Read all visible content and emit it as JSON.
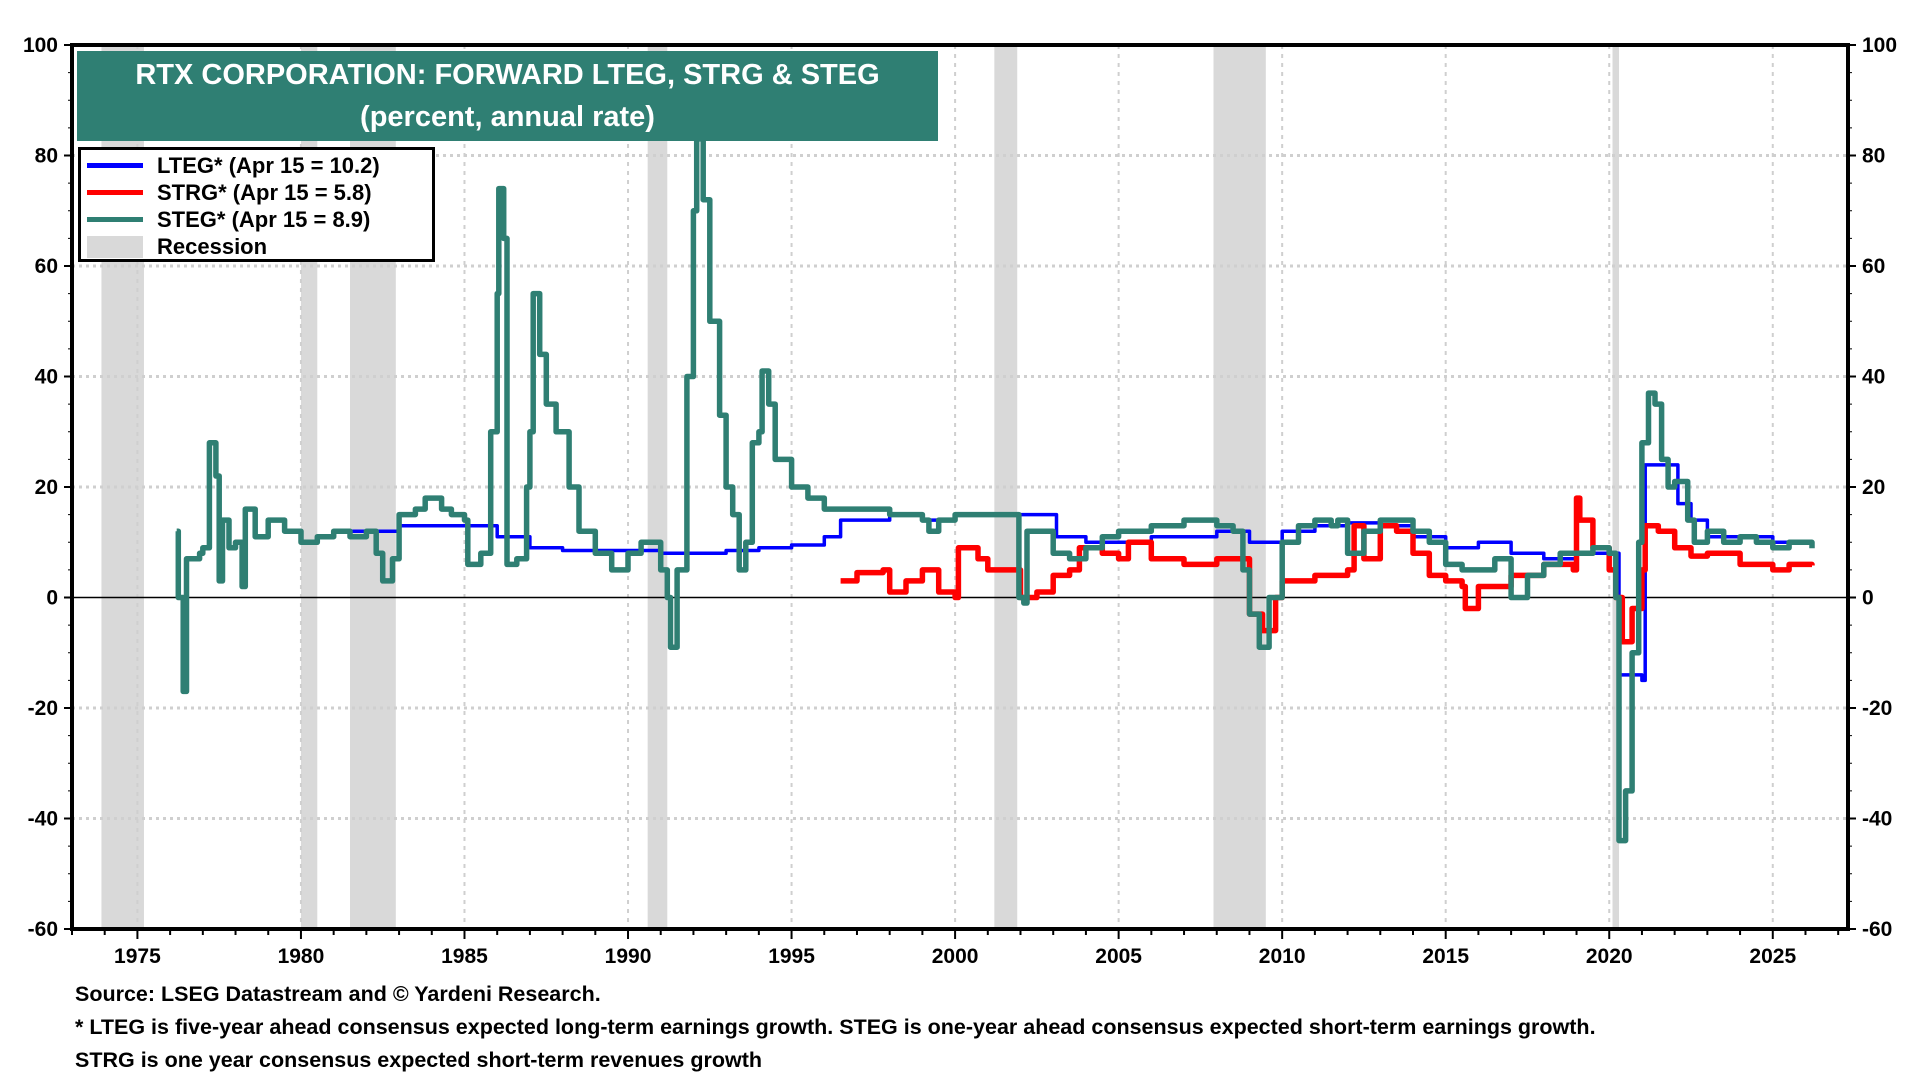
{
  "chart_data": {
    "type": "line",
    "title": "RTX CORPORATION: FORWARD LTEG, STRG & STEG",
    "subtitle": "(percent, annual rate)",
    "xlim": [
      1973,
      2027.3
    ],
    "ylim": [
      -60,
      100
    ],
    "x_ticks": [
      1975,
      1980,
      1985,
      1990,
      1995,
      2000,
      2005,
      2010,
      2015,
      2020,
      2025
    ],
    "y_ticks": [
      -60,
      -40,
      -20,
      0,
      20,
      40,
      60,
      80,
      100
    ],
    "grid": true,
    "legend_placement": "top-left",
    "recessions": [
      [
        1973.9,
        1975.2
      ],
      [
        1980.0,
        1980.5
      ],
      [
        1981.5,
        1982.9
      ],
      [
        1990.6,
        1991.2
      ],
      [
        2001.2,
        2001.9
      ],
      [
        2007.9,
        2009.5
      ],
      [
        2020.1,
        2020.3
      ]
    ],
    "recession_label": "Recession",
    "recession_color": "#d9d9d9",
    "series": [
      {
        "name": "LTEG* (Apr 15 = 10.2)",
        "color": "#0000ff",
        "points": [
          [
            1981.5,
            12
          ],
          [
            1983,
            13
          ],
          [
            1985,
            13
          ],
          [
            1986,
            11
          ],
          [
            1987,
            9
          ],
          [
            1988,
            8.5
          ],
          [
            1990,
            8.5
          ],
          [
            1991,
            8
          ],
          [
            1993,
            8.5
          ],
          [
            1994,
            9
          ],
          [
            1995,
            9.5
          ],
          [
            1996,
            11
          ],
          [
            1996.5,
            14
          ],
          [
            1998,
            15
          ],
          [
            1999,
            14
          ],
          [
            2000,
            15
          ],
          [
            2003,
            15
          ],
          [
            2003.1,
            11
          ],
          [
            2004,
            10
          ],
          [
            2006,
            11
          ],
          [
            2008,
            12
          ],
          [
            2009,
            10
          ],
          [
            2010,
            12
          ],
          [
            2011,
            13
          ],
          [
            2012,
            13.5
          ],
          [
            2013,
            13
          ],
          [
            2014,
            11
          ],
          [
            2015,
            9
          ],
          [
            2016,
            10
          ],
          [
            2017,
            8
          ],
          [
            2018,
            7
          ],
          [
            2019,
            8
          ],
          [
            2020.2,
            8
          ],
          [
            2020.3,
            -14
          ],
          [
            2020.8,
            -14
          ],
          [
            2021.0,
            -15
          ],
          [
            2021.1,
            24
          ],
          [
            2021.8,
            24
          ],
          [
            2022.1,
            17
          ],
          [
            2022.5,
            14
          ],
          [
            2023,
            11
          ],
          [
            2024,
            11
          ],
          [
            2025,
            10
          ],
          [
            2026.2,
            10.2
          ]
        ]
      },
      {
        "name": "STRG* (Apr 15 = 5.8)",
        "color": "#ff0000",
        "points": [
          [
            1996.5,
            3
          ],
          [
            1997,
            4.5
          ],
          [
            1997.8,
            5
          ],
          [
            1998,
            1
          ],
          [
            1998.5,
            3
          ],
          [
            1999,
            5
          ],
          [
            1999.5,
            1
          ],
          [
            2000,
            0
          ],
          [
            2000.1,
            9
          ],
          [
            2000.7,
            7
          ],
          [
            2001,
            5
          ],
          [
            2001.8,
            5
          ],
          [
            2002,
            0
          ],
          [
            2002.5,
            1
          ],
          [
            2003,
            4
          ],
          [
            2003.5,
            5
          ],
          [
            2003.8,
            9
          ],
          [
            2004.5,
            8
          ],
          [
            2005,
            7
          ],
          [
            2005.3,
            10
          ],
          [
            2006,
            7
          ],
          [
            2007,
            6
          ],
          [
            2008,
            7
          ],
          [
            2008.8,
            7
          ],
          [
            2009,
            -3
          ],
          [
            2009.4,
            -6
          ],
          [
            2009.8,
            0
          ],
          [
            2010,
            3
          ],
          [
            2011,
            4
          ],
          [
            2012,
            5
          ],
          [
            2012.2,
            13
          ],
          [
            2012.5,
            7
          ],
          [
            2013,
            13
          ],
          [
            2013.5,
            12
          ],
          [
            2014,
            8
          ],
          [
            2014.5,
            4
          ],
          [
            2015,
            3
          ],
          [
            2015.5,
            2
          ],
          [
            2015.6,
            -2
          ],
          [
            2016,
            2
          ],
          [
            2017,
            4
          ],
          [
            2018,
            6
          ],
          [
            2018.9,
            5
          ],
          [
            2019.0,
            18
          ],
          [
            2019.1,
            14
          ],
          [
            2019.5,
            9
          ],
          [
            2020,
            5
          ],
          [
            2020.2,
            0
          ],
          [
            2020.4,
            -8
          ],
          [
            2020.7,
            -2
          ],
          [
            2021.0,
            5
          ],
          [
            2021.1,
            13
          ],
          [
            2021.5,
            12
          ],
          [
            2022,
            9
          ],
          [
            2022.5,
            7.5
          ],
          [
            2023,
            8
          ],
          [
            2023.5,
            8
          ],
          [
            2024,
            6
          ],
          [
            2024.5,
            6
          ],
          [
            2025,
            5
          ],
          [
            2025.5,
            6
          ],
          [
            2026.2,
            5.8
          ]
        ]
      },
      {
        "name": "STEG* (Apr 15 = 8.9)",
        "color": "#2f7f73",
        "points": [
          [
            1976.2,
            12
          ],
          [
            1976.25,
            0
          ],
          [
            1976.4,
            -17
          ],
          [
            1976.5,
            7
          ],
          [
            1976.9,
            8
          ],
          [
            1977.0,
            9
          ],
          [
            1977.2,
            28
          ],
          [
            1977.4,
            22
          ],
          [
            1977.5,
            3
          ],
          [
            1977.6,
            14
          ],
          [
            1977.8,
            9
          ],
          [
            1978.0,
            10
          ],
          [
            1978.2,
            2
          ],
          [
            1978.3,
            16
          ],
          [
            1978.6,
            11
          ],
          [
            1979,
            14
          ],
          [
            1979.5,
            12
          ],
          [
            1980,
            10
          ],
          [
            1980.5,
            11
          ],
          [
            1981,
            12
          ],
          [
            1981.5,
            11
          ],
          [
            1982,
            12
          ],
          [
            1982.3,
            8
          ],
          [
            1982.5,
            3
          ],
          [
            1982.8,
            7
          ],
          [
            1983,
            15
          ],
          [
            1983.5,
            16
          ],
          [
            1983.8,
            18
          ],
          [
            1984.3,
            16
          ],
          [
            1984.6,
            15
          ],
          [
            1985,
            14
          ],
          [
            1985.1,
            6
          ],
          [
            1985.5,
            8
          ],
          [
            1985.8,
            30
          ],
          [
            1986,
            55
          ],
          [
            1986.05,
            74
          ],
          [
            1986.2,
            65
          ],
          [
            1986.3,
            6
          ],
          [
            1986.6,
            7
          ],
          [
            1986.9,
            20
          ],
          [
            1987.0,
            30
          ],
          [
            1987.1,
            55
          ],
          [
            1987.3,
            44
          ],
          [
            1987.5,
            35
          ],
          [
            1987.8,
            30
          ],
          [
            1988.2,
            20
          ],
          [
            1988.5,
            12
          ],
          [
            1989,
            8
          ],
          [
            1989.5,
            5
          ],
          [
            1990,
            8
          ],
          [
            1990.4,
            10
          ],
          [
            1990.7,
            10
          ],
          [
            1991,
            5
          ],
          [
            1991.2,
            0
          ],
          [
            1991.3,
            -9
          ],
          [
            1991.5,
            5
          ],
          [
            1991.8,
            40
          ],
          [
            1992.0,
            70
          ],
          [
            1992.1,
            83
          ],
          [
            1992.3,
            72
          ],
          [
            1992.5,
            50
          ],
          [
            1992.8,
            33
          ],
          [
            1993.0,
            20
          ],
          [
            1993.2,
            15
          ],
          [
            1993.4,
            5
          ],
          [
            1993.6,
            10
          ],
          [
            1993.8,
            28
          ],
          [
            1994.0,
            30
          ],
          [
            1994.1,
            41
          ],
          [
            1994.3,
            35
          ],
          [
            1994.5,
            25
          ],
          [
            1995,
            20
          ],
          [
            1995.5,
            18
          ],
          [
            1996,
            16
          ],
          [
            1997,
            16
          ],
          [
            1998,
            15
          ],
          [
            1999,
            14
          ],
          [
            1999.2,
            12
          ],
          [
            1999.5,
            14
          ],
          [
            2000,
            15
          ],
          [
            2001,
            15
          ],
          [
            2001.9,
            15
          ],
          [
            2001.95,
            0
          ],
          [
            2002.1,
            -1
          ],
          [
            2002.2,
            12
          ],
          [
            2002.8,
            12
          ],
          [
            2003,
            8
          ],
          [
            2003.5,
            7
          ],
          [
            2004,
            9
          ],
          [
            2004.5,
            11
          ],
          [
            2005,
            12
          ],
          [
            2006,
            13
          ],
          [
            2007,
            14
          ],
          [
            2008,
            13
          ],
          [
            2008.5,
            12
          ],
          [
            2008.8,
            5
          ],
          [
            2009.0,
            -3
          ],
          [
            2009.3,
            -9
          ],
          [
            2009.6,
            0
          ],
          [
            2010,
            10
          ],
          [
            2010.5,
            13
          ],
          [
            2011,
            14
          ],
          [
            2011.5,
            13
          ],
          [
            2011.7,
            14
          ],
          [
            2012,
            8
          ],
          [
            2012.5,
            12
          ],
          [
            2013,
            14
          ],
          [
            2013.5,
            14
          ],
          [
            2014,
            12
          ],
          [
            2014.5,
            10
          ],
          [
            2015,
            6
          ],
          [
            2015.5,
            5
          ],
          [
            2016,
            5
          ],
          [
            2016.5,
            7
          ],
          [
            2017,
            0
          ],
          [
            2017.5,
            4
          ],
          [
            2018,
            6
          ],
          [
            2018.5,
            8
          ],
          [
            2019,
            8
          ],
          [
            2019.5,
            9
          ],
          [
            2020,
            8
          ],
          [
            2020.2,
            0
          ],
          [
            2020.3,
            -44
          ],
          [
            2020.5,
            -35
          ],
          [
            2020.7,
            -10
          ],
          [
            2020.9,
            10
          ],
          [
            2021.0,
            28
          ],
          [
            2021.2,
            37
          ],
          [
            2021.4,
            35
          ],
          [
            2021.6,
            25
          ],
          [
            2021.8,
            20
          ],
          [
            2022,
            21
          ],
          [
            2022.4,
            14
          ],
          [
            2022.6,
            10
          ],
          [
            2023,
            12
          ],
          [
            2023.5,
            10
          ],
          [
            2024,
            11
          ],
          [
            2024.5,
            10
          ],
          [
            2025,
            9
          ],
          [
            2025.5,
            10
          ],
          [
            2026.2,
            8.9
          ]
        ]
      }
    ]
  },
  "footer": {
    "source": "Source: LSEG Datastream and © Yardeni Research.",
    "note1": "* LTEG is five-year ahead consensus expected long-term earnings growth. STEG is one-year ahead consensus expected short-term earnings growth.",
    "note2": "STRG is one year consensus expected short-term revenues growth"
  }
}
